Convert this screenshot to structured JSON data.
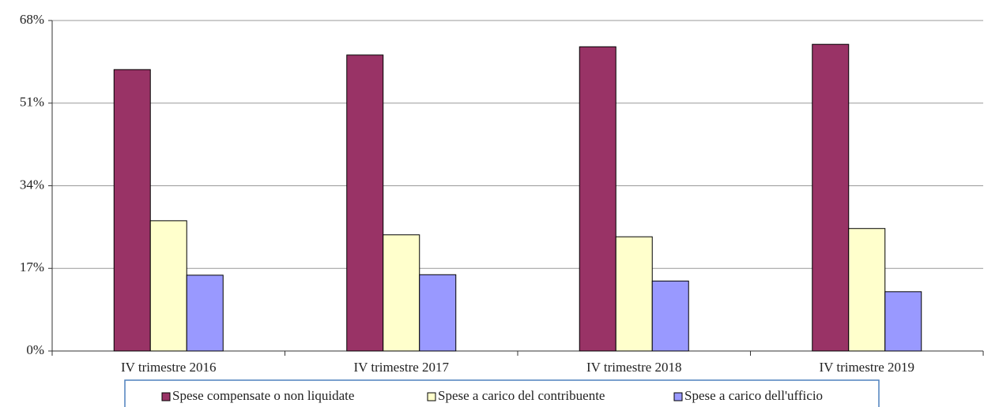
{
  "chart_data": {
    "type": "bar",
    "categories": [
      "IV trimestre 2016",
      "IV trimestre 2017",
      "IV trimestre 2018",
      "IV trimestre 2019"
    ],
    "series": [
      {
        "name": "Spese compensate o non liquidate",
        "color": "#993366",
        "values": [
          57.9,
          60.9,
          62.6,
          63.1
        ]
      },
      {
        "name": "Spese a carico del contribuente",
        "color": "#ffffcc",
        "values": [
          26.8,
          23.9,
          23.5,
          25.2
        ]
      },
      {
        "name": "Spese a carico dell'ufficio",
        "color": "#9999ff",
        "values": [
          15.6,
          15.7,
          14.4,
          12.2
        ]
      }
    ],
    "ylim": [
      0,
      68
    ],
    "yticks": [
      {
        "value": 0,
        "label": "0%"
      },
      {
        "value": 17,
        "label": "17%"
      },
      {
        "value": 34,
        "label": "34%"
      },
      {
        "value": 51,
        "label": "51%"
      },
      {
        "value": 68,
        "label": "68%"
      }
    ],
    "grid": true,
    "legend": "bottom"
  }
}
